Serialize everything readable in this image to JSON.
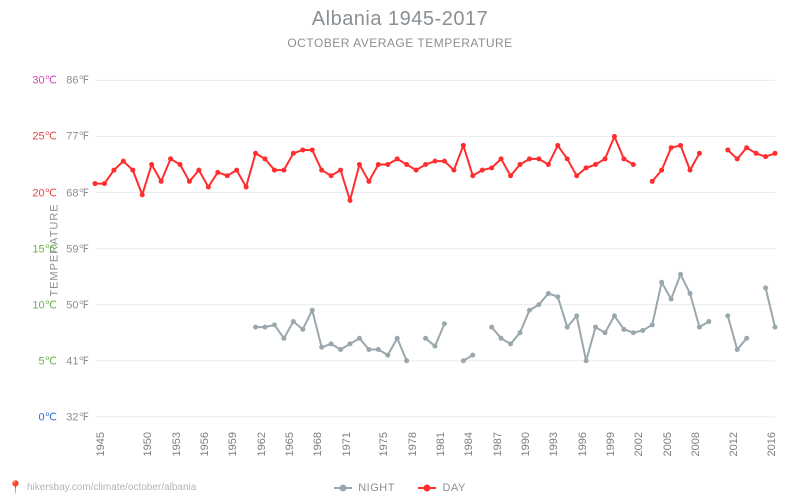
{
  "title": "Albania 1945-2017",
  "subtitle": "OCTOBER AVERAGE TEMPERATURE",
  "ylabel": "TEMPERATURE",
  "attribution_icon": "pin-icon",
  "attribution_text": "hikersbay.com/climate/october/albania",
  "chart": {
    "type": "line",
    "background_color": "#ffffff",
    "grid_color": "#e8ecef",
    "title_fontsize": 20,
    "subtitle_fontsize": 12,
    "label_fontsize": 11,
    "line_width": 2,
    "marker": "circle",
    "marker_size": 5,
    "xlim": [
      1945,
      2017
    ],
    "ylim": [
      -1,
      32
    ],
    "yticks": [
      {
        "c": 0,
        "c_label": "0℃",
        "f_label": "32℉",
        "color": "#2f6fd6"
      },
      {
        "c": 5,
        "c_label": "5℃",
        "f_label": "41℉",
        "color": "#66b34d"
      },
      {
        "c": 10,
        "c_label": "10℃",
        "f_label": "50℉",
        "color": "#66b34d"
      },
      {
        "c": 15,
        "c_label": "15℃",
        "f_label": "59℉",
        "color": "#66b34d"
      },
      {
        "c": 20,
        "c_label": "20℃",
        "f_label": "68℉",
        "color": "#e04848"
      },
      {
        "c": 25,
        "c_label": "25℃",
        "f_label": "77℉",
        "color": "#e04848"
      },
      {
        "c": 30,
        "c_label": "30℃",
        "f_label": "86℉",
        "color": "#d045c2"
      }
    ],
    "xticks": [
      1945,
      1950,
      1953,
      1956,
      1959,
      1962,
      1965,
      1968,
      1971,
      1975,
      1978,
      1981,
      1984,
      1987,
      1990,
      1993,
      1996,
      1999,
      2002,
      2005,
      2008,
      2012,
      2016
    ],
    "series": [
      {
        "name": "DAY",
        "color": "#ff2d2d",
        "years": [
          1945,
          1946,
          1947,
          1948,
          1949,
          1950,
          1951,
          1952,
          1953,
          1954,
          1955,
          1956,
          1957,
          1958,
          1959,
          1960,
          1961,
          1962,
          1963,
          1964,
          1965,
          1966,
          1967,
          1968,
          1969,
          1970,
          1971,
          1972,
          1973,
          1974,
          1975,
          1976,
          1977,
          1978,
          1979,
          1980,
          1981,
          1982,
          1983,
          1984,
          1985,
          1986,
          1987,
          1988,
          1989,
          1990,
          1991,
          1992,
          1993,
          1994,
          1995,
          1996,
          1997,
          1998,
          1999,
          2000,
          2001,
          2002,
          2004,
          2005,
          2006,
          2007,
          2008,
          2009,
          2012,
          2013,
          2014,
          2015,
          2016,
          2017
        ],
        "values": [
          20.8,
          20.8,
          22.0,
          22.8,
          22.0,
          19.8,
          22.5,
          21.0,
          23.0,
          22.5,
          21.0,
          22.0,
          20.5,
          21.8,
          21.5,
          22.0,
          20.5,
          23.5,
          23.0,
          22.0,
          22.0,
          23.5,
          23.8,
          23.8,
          22.0,
          21.5,
          22.0,
          19.3,
          22.5,
          21.0,
          22.5,
          22.5,
          23.0,
          22.5,
          22.0,
          22.5,
          22.8,
          22.8,
          22.0,
          24.2,
          21.5,
          22.0,
          22.2,
          23.0,
          21.5,
          22.5,
          23.0,
          23.0,
          22.5,
          24.2,
          23.0,
          21.5,
          22.2,
          22.5,
          23.0,
          25.0,
          23.0,
          22.5,
          21.0,
          22.0,
          24.0,
          24.2,
          22.0,
          23.5,
          23.8,
          23.0,
          24.0,
          23.5,
          23.2,
          23.5
        ],
        "gaps_after": [
          2002,
          2009
        ]
      },
      {
        "name": "NIGHT",
        "color": "#9aa7ad",
        "years": [
          1962,
          1963,
          1964,
          1965,
          1966,
          1967,
          1968,
          1969,
          1970,
          1971,
          1972,
          1973,
          1974,
          1975,
          1976,
          1977,
          1978,
          1980,
          1981,
          1982,
          1984,
          1985,
          1987,
          1988,
          1989,
          1990,
          1991,
          1992,
          1993,
          1994,
          1995,
          1996,
          1997,
          1998,
          1999,
          2000,
          2001,
          2002,
          2003,
          2004,
          2005,
          2006,
          2007,
          2008,
          2009,
          2010,
          2012,
          2013,
          2014,
          2016,
          2017
        ],
        "values": [
          8.0,
          8.0,
          8.2,
          7.0,
          8.5,
          7.8,
          9.5,
          6.2,
          6.5,
          6.0,
          6.5,
          7.0,
          6.0,
          6.0,
          5.5,
          7.0,
          5.0,
          7.0,
          6.3,
          8.3,
          5.0,
          5.5,
          8.0,
          7.0,
          6.5,
          7.5,
          9.5,
          10.0,
          11.0,
          10.7,
          8.0,
          9.0,
          5.0,
          8.0,
          7.5,
          9.0,
          7.8,
          7.5,
          7.7,
          8.2,
          12.0,
          10.5,
          12.7,
          11.0,
          8.0,
          8.5,
          9.0,
          6.0,
          7.0,
          11.5,
          8.0
        ],
        "gaps_after": [
          1978,
          1982,
          1985,
          2010,
          2014
        ]
      }
    ],
    "legend": {
      "position": "bottom-center",
      "items": [
        {
          "label": "NIGHT",
          "color": "#9aa7ad"
        },
        {
          "label": "DAY",
          "color": "#ff2d2d"
        }
      ]
    }
  }
}
